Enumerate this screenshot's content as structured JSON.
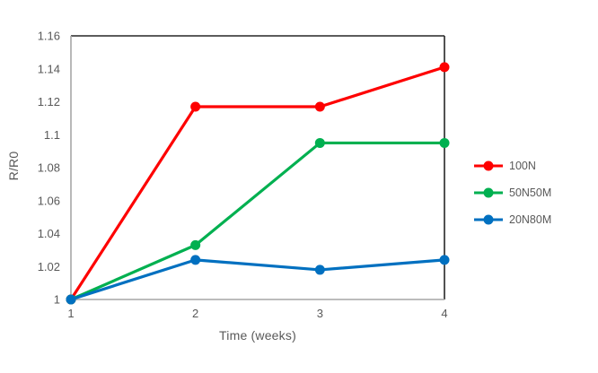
{
  "chart_data": {
    "type": "line",
    "title": "",
    "xlabel": "Time (weeks)",
    "ylabel": "R/R0",
    "x": [
      1,
      2,
      3,
      4
    ],
    "xtick_labels": [
      "1",
      "2",
      "3",
      "4"
    ],
    "ytick_labels": [
      "1",
      "1.02",
      "1.04",
      "1.06",
      "1.08",
      "1.1",
      "1.12",
      "1.14",
      "1.16"
    ],
    "xlim": [
      1,
      4
    ],
    "ylim": [
      1.0,
      1.16
    ],
    "grid": false,
    "legend_position": "right",
    "marker": "circle",
    "series": [
      {
        "name": "100N",
        "color": "#fe0000",
        "values": [
          1.0,
          1.117,
          1.117,
          1.141
        ]
      },
      {
        "name": "50N50M",
        "color": "#00b050",
        "values": [
          1.0,
          1.033,
          1.095,
          1.095
        ]
      },
      {
        "name": "20N80M",
        "color": "#0070c0",
        "values": [
          1.0,
          1.024,
          1.018,
          1.024
        ]
      }
    ],
    "colors": {
      "plot_border": "#262626",
      "axis_line": "#a6a6a6",
      "tick_text": "#595959",
      "title_text": "#595959"
    }
  }
}
